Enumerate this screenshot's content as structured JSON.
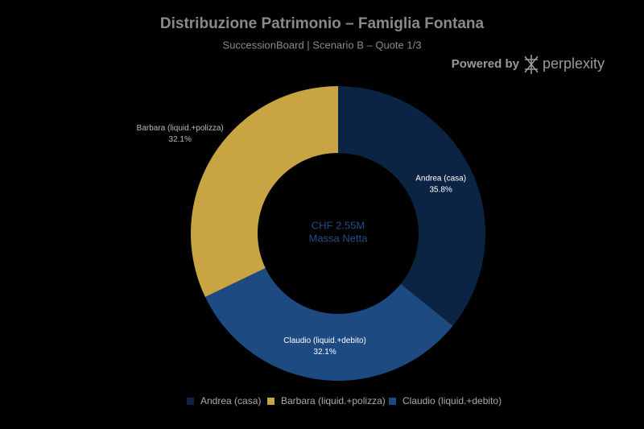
{
  "chart_data": {
    "type": "donut",
    "title": "Distribuzione Patrimonio – Famiglia Fontana",
    "subtitle": "SuccessionBoard | Scenario B – Quote 1/3",
    "center_text": [
      "CHF 2.55M",
      "Massa Netta"
    ],
    "branding": [
      "Powered by",
      "perplexity"
    ],
    "categories": [
      "Andrea (casa)",
      "Barbara (liquid.+polizza)",
      "Claudio (liquid.+debito)"
    ],
    "values": [
      35.8,
      32.1,
      32.1
    ],
    "value_labels": [
      "35.8%",
      "32.1%",
      "32.1%"
    ],
    "colors": [
      "#0c2443",
      "#c9a443",
      "#1d4a80"
    ],
    "legend": "bottom"
  }
}
